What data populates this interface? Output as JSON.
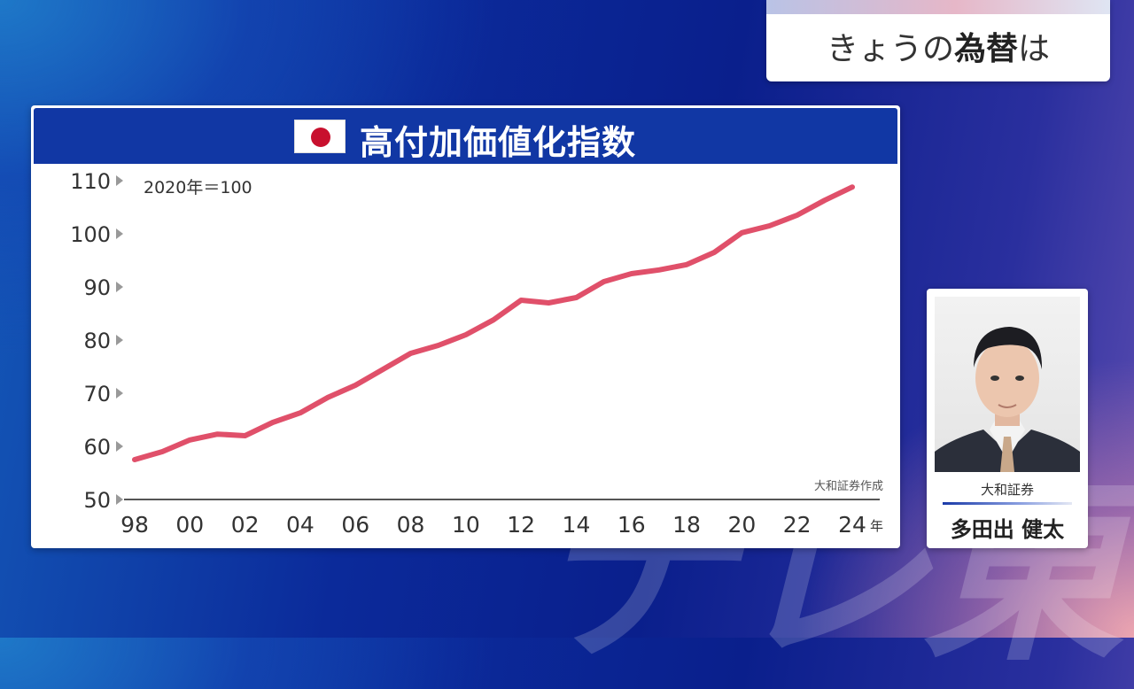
{
  "topic": {
    "prefix": "きょうの",
    "bold": "為替",
    "suffix": "は"
  },
  "chart_header": {
    "title": "高付加価値化指数",
    "flag": "japan-flag"
  },
  "chart_data": {
    "type": "line",
    "title": "高付加価値化指数",
    "note": "2020年＝100",
    "source": "大和証券作成",
    "xlabel": "年",
    "ylabel": "",
    "ylim": [
      50,
      110
    ],
    "yticks": [
      110,
      100,
      90,
      80,
      70,
      60,
      50
    ],
    "xlim": [
      1998,
      2024
    ],
    "xticks": [
      {
        "x": 1998,
        "label": "98"
      },
      {
        "x": 2000,
        "label": "00"
      },
      {
        "x": 2002,
        "label": "02"
      },
      {
        "x": 2004,
        "label": "04"
      },
      {
        "x": 2006,
        "label": "06"
      },
      {
        "x": 2008,
        "label": "08"
      },
      {
        "x": 2010,
        "label": "10"
      },
      {
        "x": 2012,
        "label": "12"
      },
      {
        "x": 2014,
        "label": "14"
      },
      {
        "x": 2016,
        "label": "16"
      },
      {
        "x": 2018,
        "label": "18"
      },
      {
        "x": 2020,
        "label": "20"
      },
      {
        "x": 2022,
        "label": "22"
      },
      {
        "x": 2024,
        "label": "24"
      }
    ],
    "grid": false,
    "series": [
      {
        "color": "#e0506a",
        "x": [
          1998,
          1999,
          2000,
          2001,
          2002,
          2003,
          2004,
          2005,
          2006,
          2007,
          2008,
          2009,
          2010,
          2011,
          2012,
          2013,
          2014,
          2015,
          2016,
          2017,
          2018,
          2019,
          2020,
          2021,
          2022,
          2023,
          2024
        ],
        "values": [
          57.5,
          59,
          61.2,
          62.3,
          62,
          64.5,
          66.3,
          69.2,
          71.5,
          74.5,
          77.5,
          79,
          81,
          83.8,
          87.5,
          87,
          88,
          91,
          92.5,
          93.2,
          94.2,
          96.5,
          100.2,
          101.5,
          103.5,
          106.3,
          108.8
        ]
      }
    ]
  },
  "person": {
    "org": "大和証券",
    "name": "多田出 健太"
  },
  "watermark": "テレ東"
}
